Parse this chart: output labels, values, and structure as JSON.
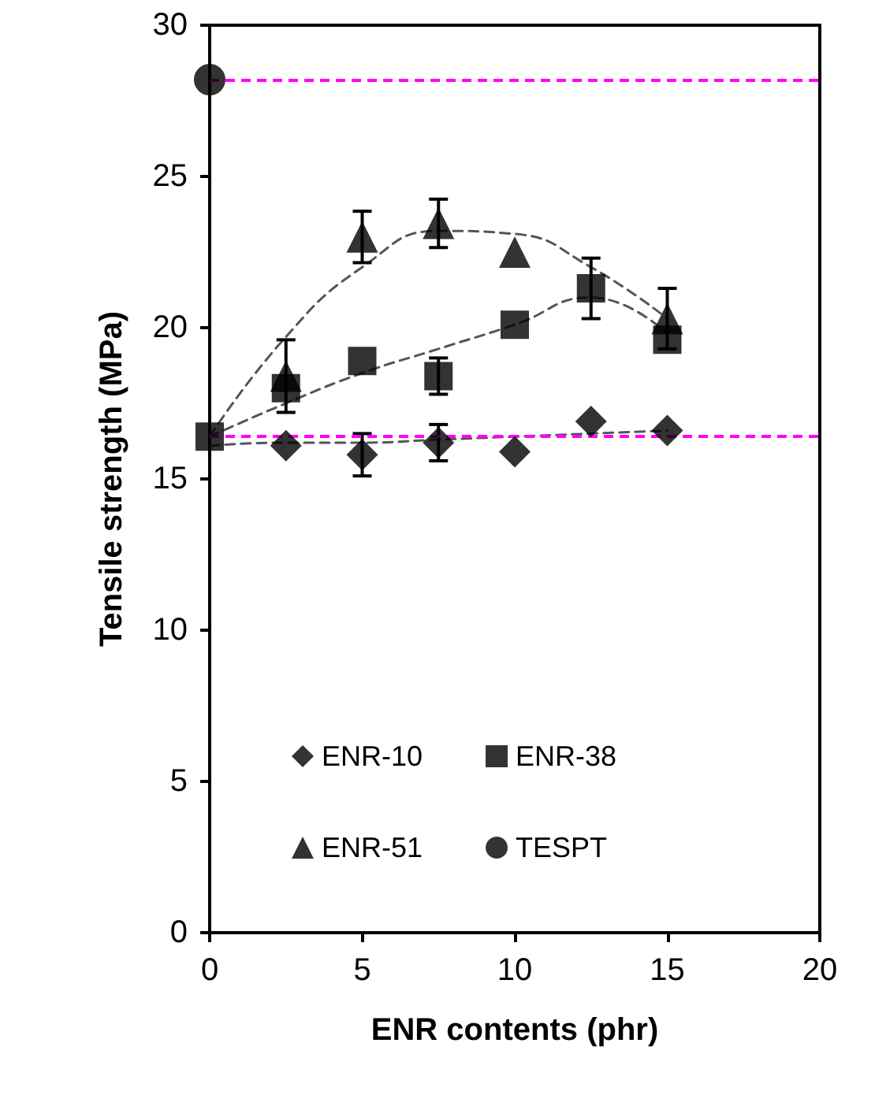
{
  "chart_data": {
    "type": "scatter",
    "xlabel": "ENR contents (phr)",
    "ylabel": "Tensile strength (MPa)",
    "x": [
      0,
      2.5,
      5,
      7.5,
      10,
      12.5,
      15
    ],
    "series": [
      {
        "name": "ENR-10",
        "color": "#000000",
        "marker": "diamond",
        "values": [
          null,
          16.1,
          15.8,
          16.2,
          15.9,
          16.9,
          16.6
        ],
        "errors": [
          null,
          null,
          0.7,
          0.6,
          null,
          null,
          null
        ]
      },
      {
        "name": "ENR-38",
        "color": "#000000",
        "marker": "square",
        "values": [
          16.4,
          18.0,
          18.9,
          18.4,
          20.1,
          21.3,
          19.6
        ],
        "errors": [
          null,
          null,
          null,
          0.6,
          null,
          1.0,
          null
        ]
      },
      {
        "name": "ENR-51",
        "color": "#000000",
        "marker": "triangle",
        "values": [
          null,
          18.4,
          23.0,
          23.45,
          22.5,
          null,
          20.3
        ],
        "errors": [
          null,
          1.2,
          0.85,
          0.8,
          null,
          null,
          1.0
        ]
      },
      {
        "name": "TESPT",
        "color": "#000000",
        "marker": "circle",
        "x": [
          0
        ],
        "values": [
          28.2
        ]
      },
      {
        "type": "line",
        "color": "#555555",
        "line_style": "dashed",
        "marker": "none",
        "values": [
          16.1,
          16.2,
          16.2,
          16.3,
          16.4,
          16.5,
          16.6
        ]
      },
      {
        "type": "line",
        "color": "#555555",
        "line_style": "dashed",
        "marker": "none",
        "values": [
          16.4,
          17.5,
          18.5,
          19.3,
          20.1,
          21.0,
          19.8
        ]
      },
      {
        "type": "line",
        "color": "#555555",
        "line_style": "dashed",
        "marker": "none",
        "values": [
          16.4,
          19.7,
          22.0,
          23.2,
          23.1,
          22.0,
          20.3
        ]
      }
    ],
    "xlim": [
      0,
      20
    ],
    "xticks": [
      0,
      5,
      10,
      15,
      20
    ],
    "ylim": [
      0,
      30
    ],
    "yticks": [
      0,
      5,
      10,
      15,
      20,
      25,
      30
    ],
    "ref_lines": [
      {
        "axis": "y",
        "value": 28.2,
        "color": "#ff00ff",
        "line_style": "dashed"
      },
      {
        "axis": "y",
        "value": 16.4,
        "color": "#ff00ff",
        "line_style": "dashed"
      }
    ],
    "grid": false,
    "legend": "bottom"
  }
}
